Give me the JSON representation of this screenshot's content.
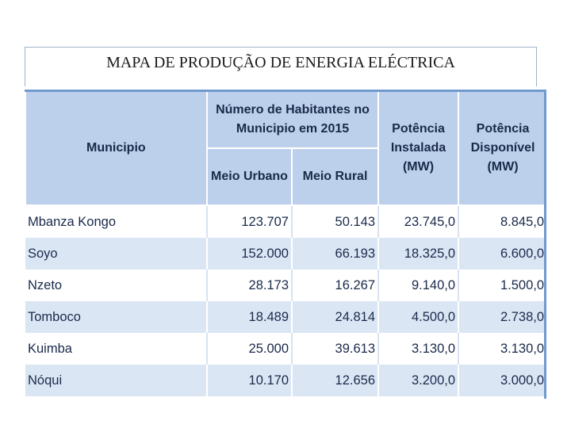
{
  "title": "MAPA DE PRODUÇÃO DE ENERGIA ELÉCTRICA",
  "table": {
    "headers": {
      "municipio": "Municipio",
      "habitantes": "Número de Habitantes no Municipio em 2015",
      "meio_urbano": "Meio Urbano",
      "meio_rural": "Meio Rural",
      "potencia_instalada": "Potência Instalada (MW)",
      "potencia_disponivel": "Potência Disponível (MW)"
    },
    "rows": [
      {
        "municipio": "Mbanza Kongo",
        "urbano": "123.707",
        "rural": "50.143",
        "instalada": "23.745,0",
        "disponivel": "8.845,0"
      },
      {
        "municipio": "Soyo",
        "urbano": "152.000",
        "rural": "66.193",
        "instalada": "18.325,0",
        "disponivel": "6.600,0"
      },
      {
        "municipio": "Nzeto",
        "urbano": "28.173",
        "rural": "16.267",
        "instalada": "9.140,0",
        "disponivel": "1.500,0"
      },
      {
        "municipio": "Tomboco",
        "urbano": "18.489",
        "rural": "24.814",
        "instalada": "4.500,0",
        "disponivel": "2.738,0"
      },
      {
        "municipio": "Kuimba",
        "urbano": "25.000",
        "rural": "39.613",
        "instalada": "3.130,0",
        "disponivel": "3.130,0"
      },
      {
        "municipio": "Nóqui",
        "urbano": "10.170",
        "rural": "12.656",
        "instalada": "3.200,0",
        "disponivel": "3.000,0"
      }
    ]
  }
}
